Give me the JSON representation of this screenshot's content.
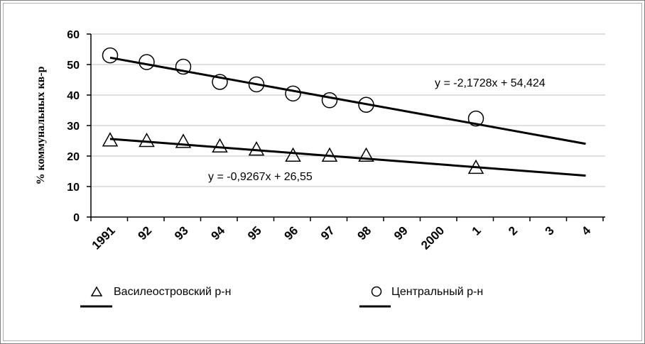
{
  "chart_data": {
    "type": "scatter",
    "title": "",
    "xlabel": "",
    "ylabel": "% коммунальных кв-р",
    "ylim": [
      0,
      60
    ],
    "yticks": [
      "0",
      "10",
      "20",
      "30",
      "40",
      "50",
      "60"
    ],
    "xticks": [
      "1991",
      "92",
      "93",
      "94",
      "95",
      "96",
      "97",
      "98",
      "99",
      "2000",
      "1",
      "2",
      "3",
      "4"
    ],
    "xtick_index": [
      0,
      1,
      2,
      3,
      4,
      5,
      6,
      7,
      8,
      9,
      10,
      11,
      12,
      13
    ],
    "grid": "horizontal",
    "legend": "bottom",
    "series": [
      {
        "name": "Василеостровский р-н",
        "marker": "triangle",
        "x": [
          0,
          1,
          2,
          3,
          4,
          5,
          6,
          7,
          10
        ],
        "values": [
          25,
          24.8,
          24.5,
          23,
          22,
          20,
          20,
          20,
          16
        ],
        "trend_label": "y = -0,9267x + 26,55",
        "trend_slope": -0.9267,
        "trend_intercept": 26.55
      },
      {
        "name": "Центральный р-н",
        "marker": "circle",
        "x": [
          0,
          1,
          2,
          3,
          4,
          5,
          6,
          7,
          10
        ],
        "values": [
          53,
          50.8,
          49.3,
          44.3,
          43.5,
          40.5,
          38.3,
          36.8,
          32.3
        ],
        "trend_label": "y = -2,1728x + 54,424",
        "trend_slope": -2.1728,
        "trend_intercept": 54.424
      }
    ],
    "colors": {
      "axis": "#000000",
      "grid": "#c0c0c0",
      "marks": "#000000"
    }
  }
}
